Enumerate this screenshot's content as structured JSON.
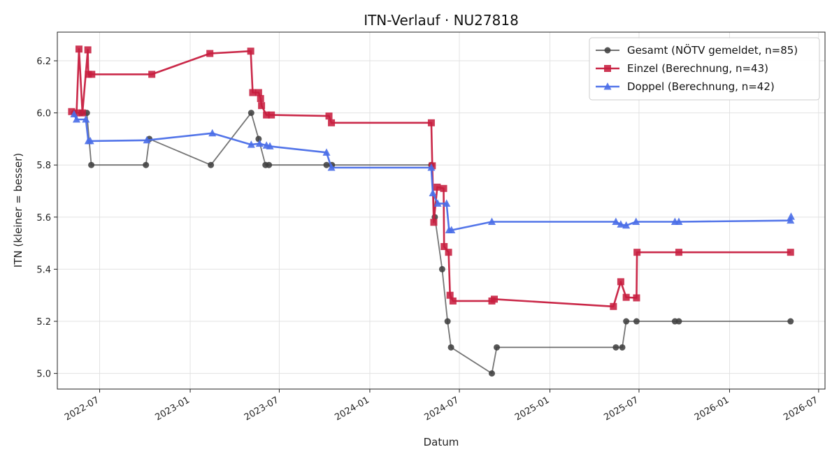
{
  "chart_data": {
    "type": "line",
    "title": "ITN-Verlauf · NU27818",
    "xlabel": "Datum",
    "ylabel": "ITN  (kleiner = besser)",
    "x_axis": "date",
    "xlim": [
      "2022-04-06",
      "2026-07-14"
    ],
    "ylim": [
      4.94,
      6.31
    ],
    "x_ticks": [
      "2022-07",
      "2023-01",
      "2023-07",
      "2024-01",
      "2024-07",
      "2025-01",
      "2025-07",
      "2026-01",
      "2026-07"
    ],
    "y_ticks": [
      5.0,
      5.2,
      5.4,
      5.6,
      5.8,
      6.0,
      6.2
    ],
    "grid": true,
    "legend_position": "top-right",
    "series": [
      {
        "name": "Gesamt (NÖTV gemeldet, n=85)",
        "color": "#404040",
        "marker": "circle",
        "points": [
          [
            "2022-05-10",
            6.0
          ],
          [
            "2022-05-25",
            6.0
          ],
          [
            "2022-06-05",
            6.0
          ],
          [
            "2022-06-14",
            5.8
          ],
          [
            "2022-10-03",
            5.8
          ],
          [
            "2022-10-10",
            5.9
          ],
          [
            "2023-02-12",
            5.8
          ],
          [
            "2023-05-05",
            6.0
          ],
          [
            "2023-05-20",
            5.9
          ],
          [
            "2023-06-03",
            5.8
          ],
          [
            "2023-06-10",
            5.8
          ],
          [
            "2023-10-05",
            5.8
          ],
          [
            "2023-10-16",
            5.8
          ],
          [
            "2024-05-05",
            5.8
          ],
          [
            "2024-05-12",
            5.6
          ],
          [
            "2024-05-27",
            5.4
          ],
          [
            "2024-06-07",
            5.2
          ],
          [
            "2024-06-14",
            5.1
          ],
          [
            "2024-09-05",
            5.0
          ],
          [
            "2024-09-15",
            5.1
          ],
          [
            "2025-05-15",
            5.1
          ],
          [
            "2025-05-28",
            5.1
          ],
          [
            "2025-06-05",
            5.2
          ],
          [
            "2025-06-26",
            5.2
          ],
          [
            "2025-09-12",
            5.2
          ],
          [
            "2025-09-20",
            5.2
          ],
          [
            "2026-05-05",
            5.2
          ]
        ]
      },
      {
        "name": "Einzel (Berechnung, n=43)",
        "color": "#c71e3f",
        "marker": "square",
        "points": [
          [
            "2022-05-05",
            6.005
          ],
          [
            "2022-05-15",
            6.0
          ],
          [
            "2022-05-20",
            6.245
          ],
          [
            "2022-05-27",
            6.0
          ],
          [
            "2022-06-07",
            6.242
          ],
          [
            "2022-06-08",
            6.148
          ],
          [
            "2022-06-15",
            6.148
          ],
          [
            "2022-10-15",
            6.148
          ],
          [
            "2023-02-10",
            6.228
          ],
          [
            "2023-05-04",
            6.237
          ],
          [
            "2023-05-08",
            6.078
          ],
          [
            "2023-05-20",
            6.078
          ],
          [
            "2023-05-24",
            6.055
          ],
          [
            "2023-05-26",
            6.028
          ],
          [
            "2023-06-05",
            5.992
          ],
          [
            "2023-06-15",
            5.992
          ],
          [
            "2023-10-10",
            5.988
          ],
          [
            "2023-10-15",
            5.962
          ],
          [
            "2024-05-05",
            5.962
          ],
          [
            "2024-05-07",
            5.797
          ],
          [
            "2024-05-10",
            5.58
          ],
          [
            "2024-05-17",
            5.715
          ],
          [
            "2024-05-30",
            5.71
          ],
          [
            "2024-05-31",
            5.487
          ],
          [
            "2024-06-09",
            5.465
          ],
          [
            "2024-06-12",
            5.3
          ],
          [
            "2024-06-18",
            5.278
          ],
          [
            "2024-09-05",
            5.278
          ],
          [
            "2024-09-10",
            5.285
          ],
          [
            "2025-05-10",
            5.257
          ],
          [
            "2025-05-25",
            5.352
          ],
          [
            "2025-06-05",
            5.292
          ],
          [
            "2025-06-26",
            5.29
          ],
          [
            "2025-06-27",
            5.465
          ],
          [
            "2025-09-20",
            5.465
          ],
          [
            "2026-05-05",
            5.465
          ]
        ]
      },
      {
        "name": "Doppel (Berechnung, n=42)",
        "color": "#4a6ee8",
        "marker": "triangle",
        "points": [
          [
            "2022-05-10",
            5.995
          ],
          [
            "2022-05-15",
            5.975
          ],
          [
            "2022-06-03",
            5.975
          ],
          [
            "2022-06-08",
            5.892
          ],
          [
            "2022-06-12",
            5.892
          ],
          [
            "2022-10-05",
            5.895
          ],
          [
            "2023-02-15",
            5.922
          ],
          [
            "2023-05-05",
            5.878
          ],
          [
            "2023-05-22",
            5.882
          ],
          [
            "2023-06-05",
            5.875
          ],
          [
            "2023-06-12",
            5.872
          ],
          [
            "2023-10-05",
            5.848
          ],
          [
            "2023-10-15",
            5.79
          ],
          [
            "2024-05-05",
            5.79
          ],
          [
            "2024-05-08",
            5.692
          ],
          [
            "2024-05-18",
            5.652
          ],
          [
            "2024-06-05",
            5.652
          ],
          [
            "2024-06-10",
            5.55
          ],
          [
            "2024-06-15",
            5.55
          ],
          [
            "2024-09-05",
            5.582
          ],
          [
            "2025-05-15",
            5.582
          ],
          [
            "2025-05-25",
            5.572
          ],
          [
            "2025-06-05",
            5.568
          ],
          [
            "2025-06-25",
            5.582
          ],
          [
            "2025-09-12",
            5.582
          ],
          [
            "2025-09-20",
            5.582
          ],
          [
            "2026-05-05",
            5.587
          ],
          [
            "2026-05-06",
            5.602
          ]
        ]
      }
    ]
  }
}
